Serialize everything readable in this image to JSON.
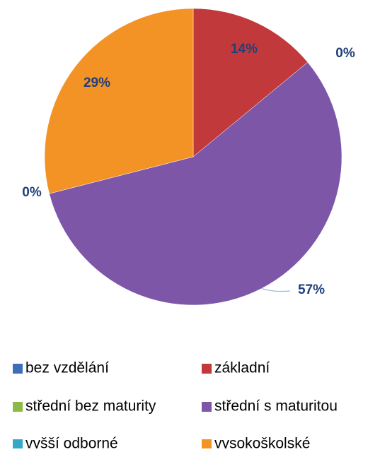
{
  "chart_data": {
    "type": "pie",
    "categories": [
      "bez vzdělání",
      "základní",
      "střední bez maturity",
      "střední s maturitou",
      "vyšší odborné",
      "vysokoškolské"
    ],
    "values": [
      0,
      14,
      0,
      57,
      0,
      29
    ],
    "value_labels": [
      null,
      "14%",
      "0%",
      "57%",
      "0%",
      "29%"
    ],
    "colors": [
      "#3d6fb8",
      "#c2393b",
      "#8cba45",
      "#7d56a8",
      "#35a8c8",
      "#f39225"
    ],
    "legend": "bottom"
  }
}
